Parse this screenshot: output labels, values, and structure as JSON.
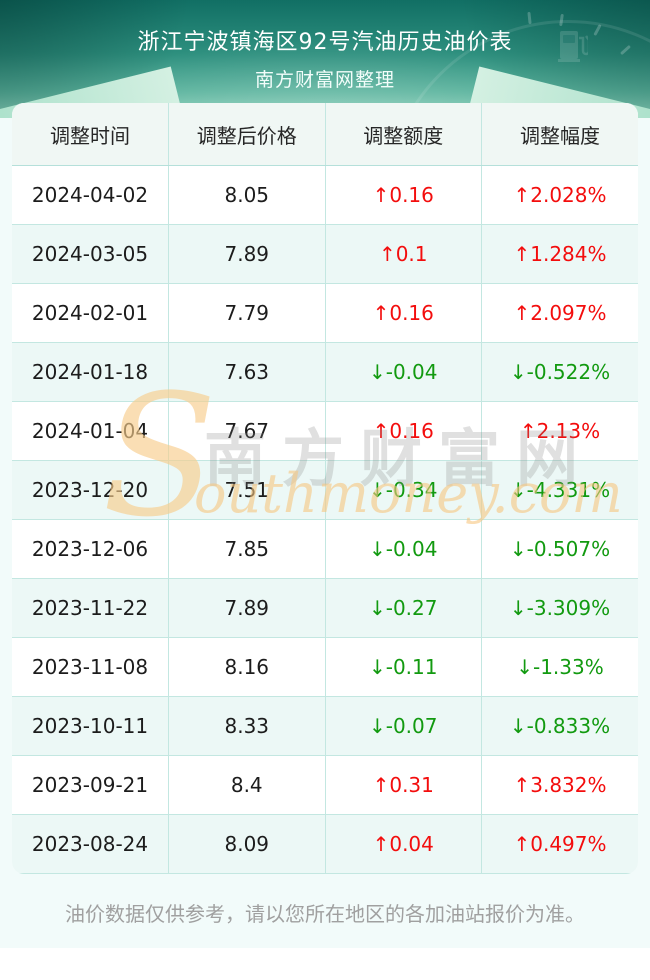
{
  "header": {
    "title": "浙江宁波镇海区92号汽油历史油价表",
    "subtitle": "南方财富网整理"
  },
  "table": {
    "columns": [
      "调整时间",
      "调整后价格",
      "调整额度",
      "调整幅度"
    ],
    "rows": [
      {
        "date": "2024-04-02",
        "price": "8.05",
        "change": "↑0.16",
        "change_pct": "↑2.028%",
        "direction": "up"
      },
      {
        "date": "2024-03-05",
        "price": "7.89",
        "change": "↑0.1",
        "change_pct": "↑1.284%",
        "direction": "up"
      },
      {
        "date": "2024-02-01",
        "price": "7.79",
        "change": "↑0.16",
        "change_pct": "↑2.097%",
        "direction": "up"
      },
      {
        "date": "2024-01-18",
        "price": "7.63",
        "change": "↓-0.04",
        "change_pct": "↓-0.522%",
        "direction": "down"
      },
      {
        "date": "2024-01-04",
        "price": "7.67",
        "change": "↑0.16",
        "change_pct": "↑2.13%",
        "direction": "up"
      },
      {
        "date": "2023-12-20",
        "price": "7.51",
        "change": "↓-0.34",
        "change_pct": "↓-4.331%",
        "direction": "down"
      },
      {
        "date": "2023-12-06",
        "price": "7.85",
        "change": "↓-0.04",
        "change_pct": "↓-0.507%",
        "direction": "down"
      },
      {
        "date": "2023-11-22",
        "price": "7.89",
        "change": "↓-0.27",
        "change_pct": "↓-3.309%",
        "direction": "down"
      },
      {
        "date": "2023-11-08",
        "price": "8.16",
        "change": "↓-0.11",
        "change_pct": "↓-1.33%",
        "direction": "down"
      },
      {
        "date": "2023-10-11",
        "price": "8.33",
        "change": "↓-0.07",
        "change_pct": "↓-0.833%",
        "direction": "down"
      },
      {
        "date": "2023-09-21",
        "price": "8.4",
        "change": "↑0.31",
        "change_pct": "↑3.832%",
        "direction": "up"
      },
      {
        "date": "2023-08-24",
        "price": "8.09",
        "change": "↑0.04",
        "change_pct": "↑0.497%",
        "direction": "up"
      }
    ]
  },
  "watermark": {
    "s": "S",
    "cn": "南方财富网",
    "en": "outhmoney.com"
  },
  "disclaimer": "油价数据仅供参考，请以您所在地区的各加油站报价为准。",
  "colors": {
    "up_red": "#f30d0d",
    "down_green": "#129a10",
    "hero_teal_dark": "#116f64",
    "hero_teal_light": "#8fd2bc",
    "row_alt": "#ecf8f6",
    "table_border": "#c3e7e1",
    "page_bg": "#f2fbfa",
    "watermark_orange": "#f7c680"
  },
  "chart_data": {
    "type": "table",
    "title": "浙江宁波镇海区92号汽油历史油价表",
    "subtitle": "南方财富网整理",
    "columns": [
      "调整时间",
      "调整后价格",
      "调整额度",
      "调整幅度"
    ],
    "dates": [
      "2024-04-02",
      "2024-03-05",
      "2024-02-01",
      "2024-01-18",
      "2024-01-04",
      "2023-12-20",
      "2023-12-06",
      "2023-11-22",
      "2023-11-08",
      "2023-10-11",
      "2023-09-21",
      "2023-08-24"
    ],
    "series": [
      {
        "name": "调整后价格",
        "values": [
          8.05,
          7.89,
          7.79,
          7.63,
          7.67,
          7.51,
          7.85,
          7.89,
          8.16,
          8.33,
          8.4,
          8.09
        ]
      },
      {
        "name": "调整额度",
        "values": [
          0.16,
          0.1,
          0.16,
          -0.04,
          0.16,
          -0.34,
          -0.04,
          -0.27,
          -0.11,
          -0.07,
          0.31,
          0.04
        ]
      },
      {
        "name": "调整幅度(%)",
        "values": [
          2.028,
          1.284,
          2.097,
          -0.522,
          2.13,
          -4.331,
          -0.507,
          -3.309,
          -1.33,
          -0.833,
          3.832,
          0.497
        ]
      }
    ]
  }
}
